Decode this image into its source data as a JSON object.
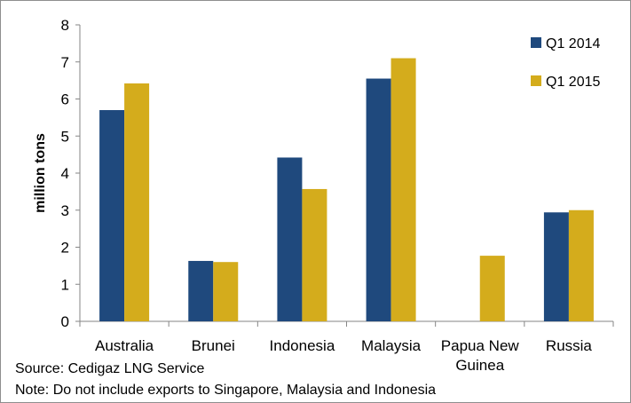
{
  "chart_data": {
    "type": "bar",
    "ylabel": "million tons",
    "xlabel": "",
    "ylim": [
      0,
      8
    ],
    "yticks": [
      "0",
      "1",
      "2",
      "3",
      "4",
      "5",
      "6",
      "7",
      "8"
    ],
    "grid": false,
    "legend_position": "top-right",
    "categories": [
      [
        "Australia"
      ],
      [
        "Brunei"
      ],
      [
        "Indonesia"
      ],
      [
        "Malaysia"
      ],
      [
        "Papua New",
        "Guinea"
      ],
      [
        "Russia"
      ]
    ],
    "series": [
      {
        "name": "Q1 2014",
        "color": "#1f497d",
        "values": [
          5.7,
          1.63,
          4.42,
          6.55,
          null,
          2.94
        ]
      },
      {
        "name": "Q1 2015",
        "color": "#d4ac1c",
        "values": [
          6.42,
          1.6,
          3.57,
          7.1,
          1.77,
          3.0
        ]
      }
    ]
  },
  "notes": [
    "Source: Cedigaz LNG Service",
    "Note: Do not include  exports to Singapore, Malaysia and Indonesia"
  ]
}
